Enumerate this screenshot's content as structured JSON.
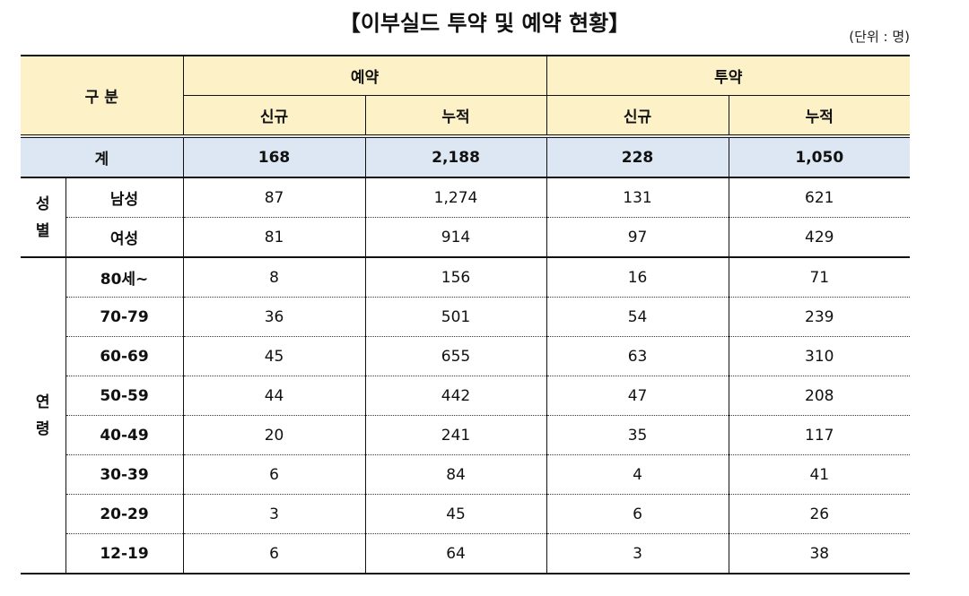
{
  "title": "【이부실드 투약 및 예약 현황】",
  "unit": "(단위 : 명)",
  "header": {
    "category": "구 분",
    "group1": "예약",
    "group2": "투약",
    "sub_new": "신규",
    "sub_cum": "누적"
  },
  "total": {
    "label": "계",
    "values": [
      "168",
      "2,188",
      "228",
      "1,050"
    ]
  },
  "gender": {
    "label_line1": "성",
    "label_line2": "별",
    "rows": [
      {
        "label": "남성",
        "values": [
          "87",
          "1,274",
          "131",
          "621"
        ]
      },
      {
        "label": "여성",
        "values": [
          "81",
          "914",
          "97",
          "429"
        ]
      }
    ]
  },
  "age": {
    "label_line1": "연",
    "label_line2": "령",
    "rows": [
      {
        "label": "80세~",
        "values": [
          "8",
          "156",
          "16",
          "71"
        ]
      },
      {
        "label": "70-79",
        "values": [
          "36",
          "501",
          "54",
          "239"
        ]
      },
      {
        "label": "60-69",
        "values": [
          "45",
          "655",
          "63",
          "310"
        ]
      },
      {
        "label": "50-59",
        "values": [
          "44",
          "442",
          "47",
          "208"
        ]
      },
      {
        "label": "40-49",
        "values": [
          "20",
          "241",
          "35",
          "117"
        ]
      },
      {
        "label": "30-39",
        "values": [
          "6",
          "84",
          "4",
          "41"
        ]
      },
      {
        "label": "20-29",
        "values": [
          "3",
          "45",
          "6",
          "26"
        ]
      },
      {
        "label": "12-19",
        "values": [
          "6",
          "64",
          "3",
          "38"
        ]
      }
    ]
  },
  "colors": {
    "header_bg": "#fdf1c8",
    "total_bg": "#dde7f3"
  }
}
